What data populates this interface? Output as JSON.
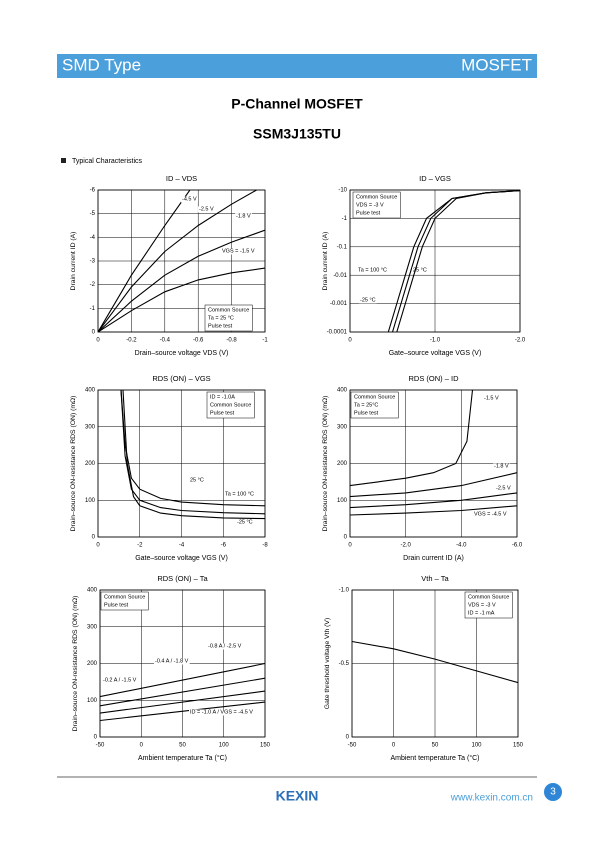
{
  "header": {
    "left": "SMD Type",
    "right": "MOSFET"
  },
  "title": "P-Channel MOSFET",
  "subtitle": "SSM3J135TU",
  "section": "Typical Characteristics",
  "chart_data": [
    {
      "type": "line",
      "title": "ID – VDS",
      "x_label": "Drain–source voltage VDS (V)",
      "y_label": "Drain current ID (A)",
      "xlim": [
        0,
        -1
      ],
      "ylim": [
        0,
        -6
      ],
      "xticks": [
        0,
        -0.2,
        -0.4,
        -0.6,
        -0.8,
        -1
      ],
      "yticks": [
        0,
        -1,
        -2,
        -3,
        -4,
        -5,
        -6
      ],
      "grid": true,
      "annotations": [
        "Common Source",
        "Ta = 25 °C",
        "Pulse test"
      ],
      "series": [
        {
          "name": "-4.5 V",
          "color": "#000000",
          "x": [
            0,
            -0.2,
            -0.4,
            -0.55
          ],
          "values": [
            0,
            -2.4,
            -4.5,
            -6
          ]
        },
        {
          "name": "-2.5 V",
          "color": "#000000",
          "x": [
            0,
            -0.2,
            -0.4,
            -0.6,
            -0.8,
            -0.95
          ],
          "values": [
            0,
            -1.9,
            -3.4,
            -4.5,
            -5.4,
            -6
          ]
        },
        {
          "name": "-1.8 V",
          "color": "#000000",
          "x": [
            0,
            -0.2,
            -0.4,
            -0.6,
            -0.8,
            -1
          ],
          "values": [
            0,
            -1.3,
            -2.4,
            -3.2,
            -3.8,
            -4.3
          ]
        },
        {
          "name": "VGS = -1.5 V",
          "color": "#000000",
          "x": [
            0,
            -0.2,
            -0.4,
            -0.6,
            -0.8,
            -1
          ],
          "values": [
            0,
            -0.9,
            -1.7,
            -2.2,
            -2.5,
            -2.7
          ]
        }
      ]
    },
    {
      "type": "line",
      "title": "ID – VGS",
      "x_label": "Gate–source voltage VGS (V)",
      "y_label": "Drain current ID (A)",
      "xlim": [
        0,
        -2
      ],
      "ylim": [
        -0.0001,
        -10
      ],
      "y_scale": "log",
      "xticks": [
        0,
        {
          "value": -1,
          "label": "-1.0"
        },
        {
          "value": -2,
          "label": "-2.0"
        }
      ],
      "yticks": [
        -0.0001,
        -0.001,
        -0.01,
        -0.1,
        -1,
        -10
      ],
      "grid": true,
      "annotations": [
        "Common Source",
        "VDS = -3 V",
        "Pulse test"
      ],
      "series": [
        {
          "name": "Ta = 100 °C",
          "color": "#000000",
          "x": [
            -0.45,
            -0.55,
            -0.65,
            -0.75,
            -0.9,
            -1.2,
            -1.6,
            -2
          ],
          "values": [
            -0.0001,
            -0.001,
            -0.01,
            -0.1,
            -1,
            -5,
            -8,
            -9.5
          ]
        },
        {
          "name": "25 °C",
          "color": "#000000",
          "x": [
            -0.5,
            -0.6,
            -0.7,
            -0.8,
            -0.95,
            -1.2,
            -1.6,
            -2
          ],
          "values": [
            -0.0001,
            -0.001,
            -0.01,
            -0.1,
            -1,
            -5,
            -8,
            -9.5
          ]
        },
        {
          "name": "-25 °C",
          "color": "#000000",
          "x": [
            -0.55,
            -0.65,
            -0.75,
            -0.85,
            -1,
            -1.25,
            -1.6,
            -2
          ],
          "values": [
            -0.0001,
            -0.001,
            -0.01,
            -0.1,
            -1,
            -5,
            -8,
            -9.5
          ]
        }
      ]
    },
    {
      "type": "line",
      "title": "RDS (ON) – VGS",
      "x_label": "Gate–source voltage VGS (V)",
      "y_label": "Drain–source ON-resistance RDS (ON) (mΩ)",
      "xlim": [
        0,
        -8
      ],
      "ylim": [
        0,
        400
      ],
      "xticks": [
        0,
        -2,
        -4,
        -6,
        -8
      ],
      "yticks": [
        0,
        100,
        200,
        300,
        400
      ],
      "grid": true,
      "annotations": [
        "ID = -1.0A",
        "Common Source",
        "Pulse test"
      ],
      "series": [
        {
          "name": "25 °C",
          "color": "#000000",
          "x": [
            -1.1,
            -1.3,
            -1.6,
            -2,
            -3,
            -4,
            -6,
            -8
          ],
          "values": [
            400,
            220,
            130,
            100,
            80,
            72,
            66,
            63
          ]
        },
        {
          "name": "Ta = 100 °C",
          "color": "#000000",
          "x": [
            -1.1,
            -1.3,
            -1.6,
            -2,
            -3,
            -4,
            -6,
            -8
          ],
          "values": [
            400,
            250,
            160,
            130,
            105,
            95,
            88,
            85
          ]
        },
        {
          "name": "-25 °C",
          "color": "#000000",
          "x": [
            -1.2,
            -1.4,
            -1.7,
            -2,
            -3,
            -4,
            -6,
            -8
          ],
          "values": [
            400,
            200,
            110,
            85,
            65,
            58,
            52,
            50
          ]
        }
      ]
    },
    {
      "type": "line",
      "title": "RDS (ON) – ID",
      "x_label": "Drain current ID (A)",
      "y_label": "Drain–source ON-resistance RDS (ON) (mΩ)",
      "xlim": [
        0,
        -6
      ],
      "ylim": [
        0,
        400
      ],
      "xticks": [
        0,
        {
          "value": -2,
          "label": "-2.0"
        },
        {
          "value": -4,
          "label": "-4.0"
        },
        {
          "value": -6,
          "label": "-6.0"
        }
      ],
      "yticks": [
        0,
        100,
        200,
        300,
        400
      ],
      "grid": true,
      "annotations": [
        "Common Source",
        "Ta = 25°C",
        "Pulse test"
      ],
      "series": [
        {
          "name": "-1.5 V",
          "color": "#000000",
          "x": [
            0,
            -1,
            -2,
            -3,
            -3.8,
            -4.2,
            -4.4
          ],
          "values": [
            140,
            150,
            160,
            175,
            200,
            260,
            400
          ]
        },
        {
          "name": "-1.8 V",
          "color": "#000000",
          "x": [
            0,
            -2,
            -4,
            -6
          ],
          "values": [
            110,
            120,
            140,
            175
          ]
        },
        {
          "name": "-2.5 V",
          "color": "#000000",
          "x": [
            0,
            -2,
            -4,
            -6
          ],
          "values": [
            80,
            88,
            100,
            120
          ]
        },
        {
          "name": "VGS = -4.5 V",
          "color": "#000000",
          "x": [
            0,
            -2,
            -4,
            -6
          ],
          "values": [
            60,
            65,
            72,
            85
          ]
        }
      ]
    },
    {
      "type": "line",
      "title": "RDS (ON) – Ta",
      "x_label": "Ambient temperature Ta (°C)",
      "y_label": "Drain–source ON-resistance RDS (ON) (mΩ)",
      "xlim": [
        -50,
        150
      ],
      "ylim": [
        0,
        400
      ],
      "xticks": [
        -50,
        0,
        50,
        100,
        150
      ],
      "yticks": [
        0,
        100,
        200,
        300,
        400
      ],
      "grid": true,
      "annotations": [
        "Common Source",
        "Pulse test"
      ],
      "series": [
        {
          "name": "ID = -1.0 A / VGS = -4.5 V",
          "color": "#000000",
          "x": [
            -50,
            150
          ],
          "values": [
            45,
            95
          ]
        },
        {
          "name": "-0.2 A / -1.5 V",
          "color": "#000000",
          "x": [
            -50,
            150
          ],
          "values": [
            110,
            200
          ]
        },
        {
          "name": "-0.4 A / -1.8 V",
          "color": "#000000",
          "x": [
            -50,
            150
          ],
          "values": [
            85,
            160
          ]
        },
        {
          "name": "-0.8 A / -2.5 V",
          "color": "#000000",
          "x": [
            -50,
            150
          ],
          "values": [
            65,
            125
          ]
        }
      ]
    },
    {
      "type": "line",
      "title": "Vth – Ta",
      "x_label": "Ambient temperature Ta (°C)",
      "y_label": "Gate threshold voltage Vth (V)",
      "xlim": [
        -50,
        150
      ],
      "ylim": [
        0,
        -1
      ],
      "xticks": [
        -50,
        0,
        50,
        100,
        150
      ],
      "yticks": [
        0,
        -0.5,
        {
          "value": -1,
          "label": "-1.0"
        }
      ],
      "grid": true,
      "annotations": [
        "Common Source",
        "VDS = -3 V",
        "ID = -1 mA"
      ],
      "series": [
        {
          "color": "#000000",
          "x": [
            -50,
            0,
            50,
            100,
            150
          ],
          "values": [
            -0.65,
            -0.6,
            -0.53,
            -0.45,
            -0.37
          ]
        }
      ]
    }
  ],
  "footer": {
    "logo": "KEXIN",
    "url": "www.kexin.com.cn",
    "page": 3
  }
}
